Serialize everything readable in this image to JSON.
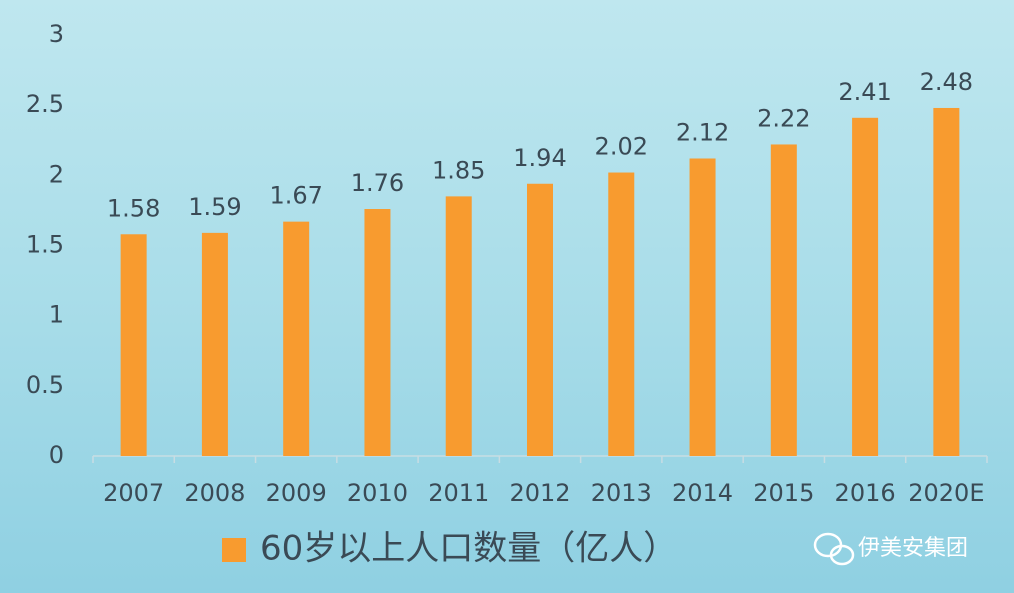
{
  "chart_data": {
    "type": "bar",
    "categories": [
      "2007",
      "2008",
      "2009",
      "2010",
      "2011",
      "2012",
      "2013",
      "2014",
      "2015",
      "2016",
      "2020E"
    ],
    "series": [
      {
        "name": "60岁以上人口数量（亿人）",
        "color": "#f89b2f",
        "values": [
          1.58,
          1.59,
          1.67,
          1.76,
          1.85,
          1.94,
          2.02,
          2.12,
          2.22,
          2.41,
          2.48
        ]
      }
    ],
    "ylim": [
      0,
      3
    ],
    "yticks": [
      0,
      0.5,
      1,
      1.5,
      2,
      2.5,
      3
    ],
    "grid": false,
    "legend": "bottom",
    "watermark": "伊美安集团"
  }
}
